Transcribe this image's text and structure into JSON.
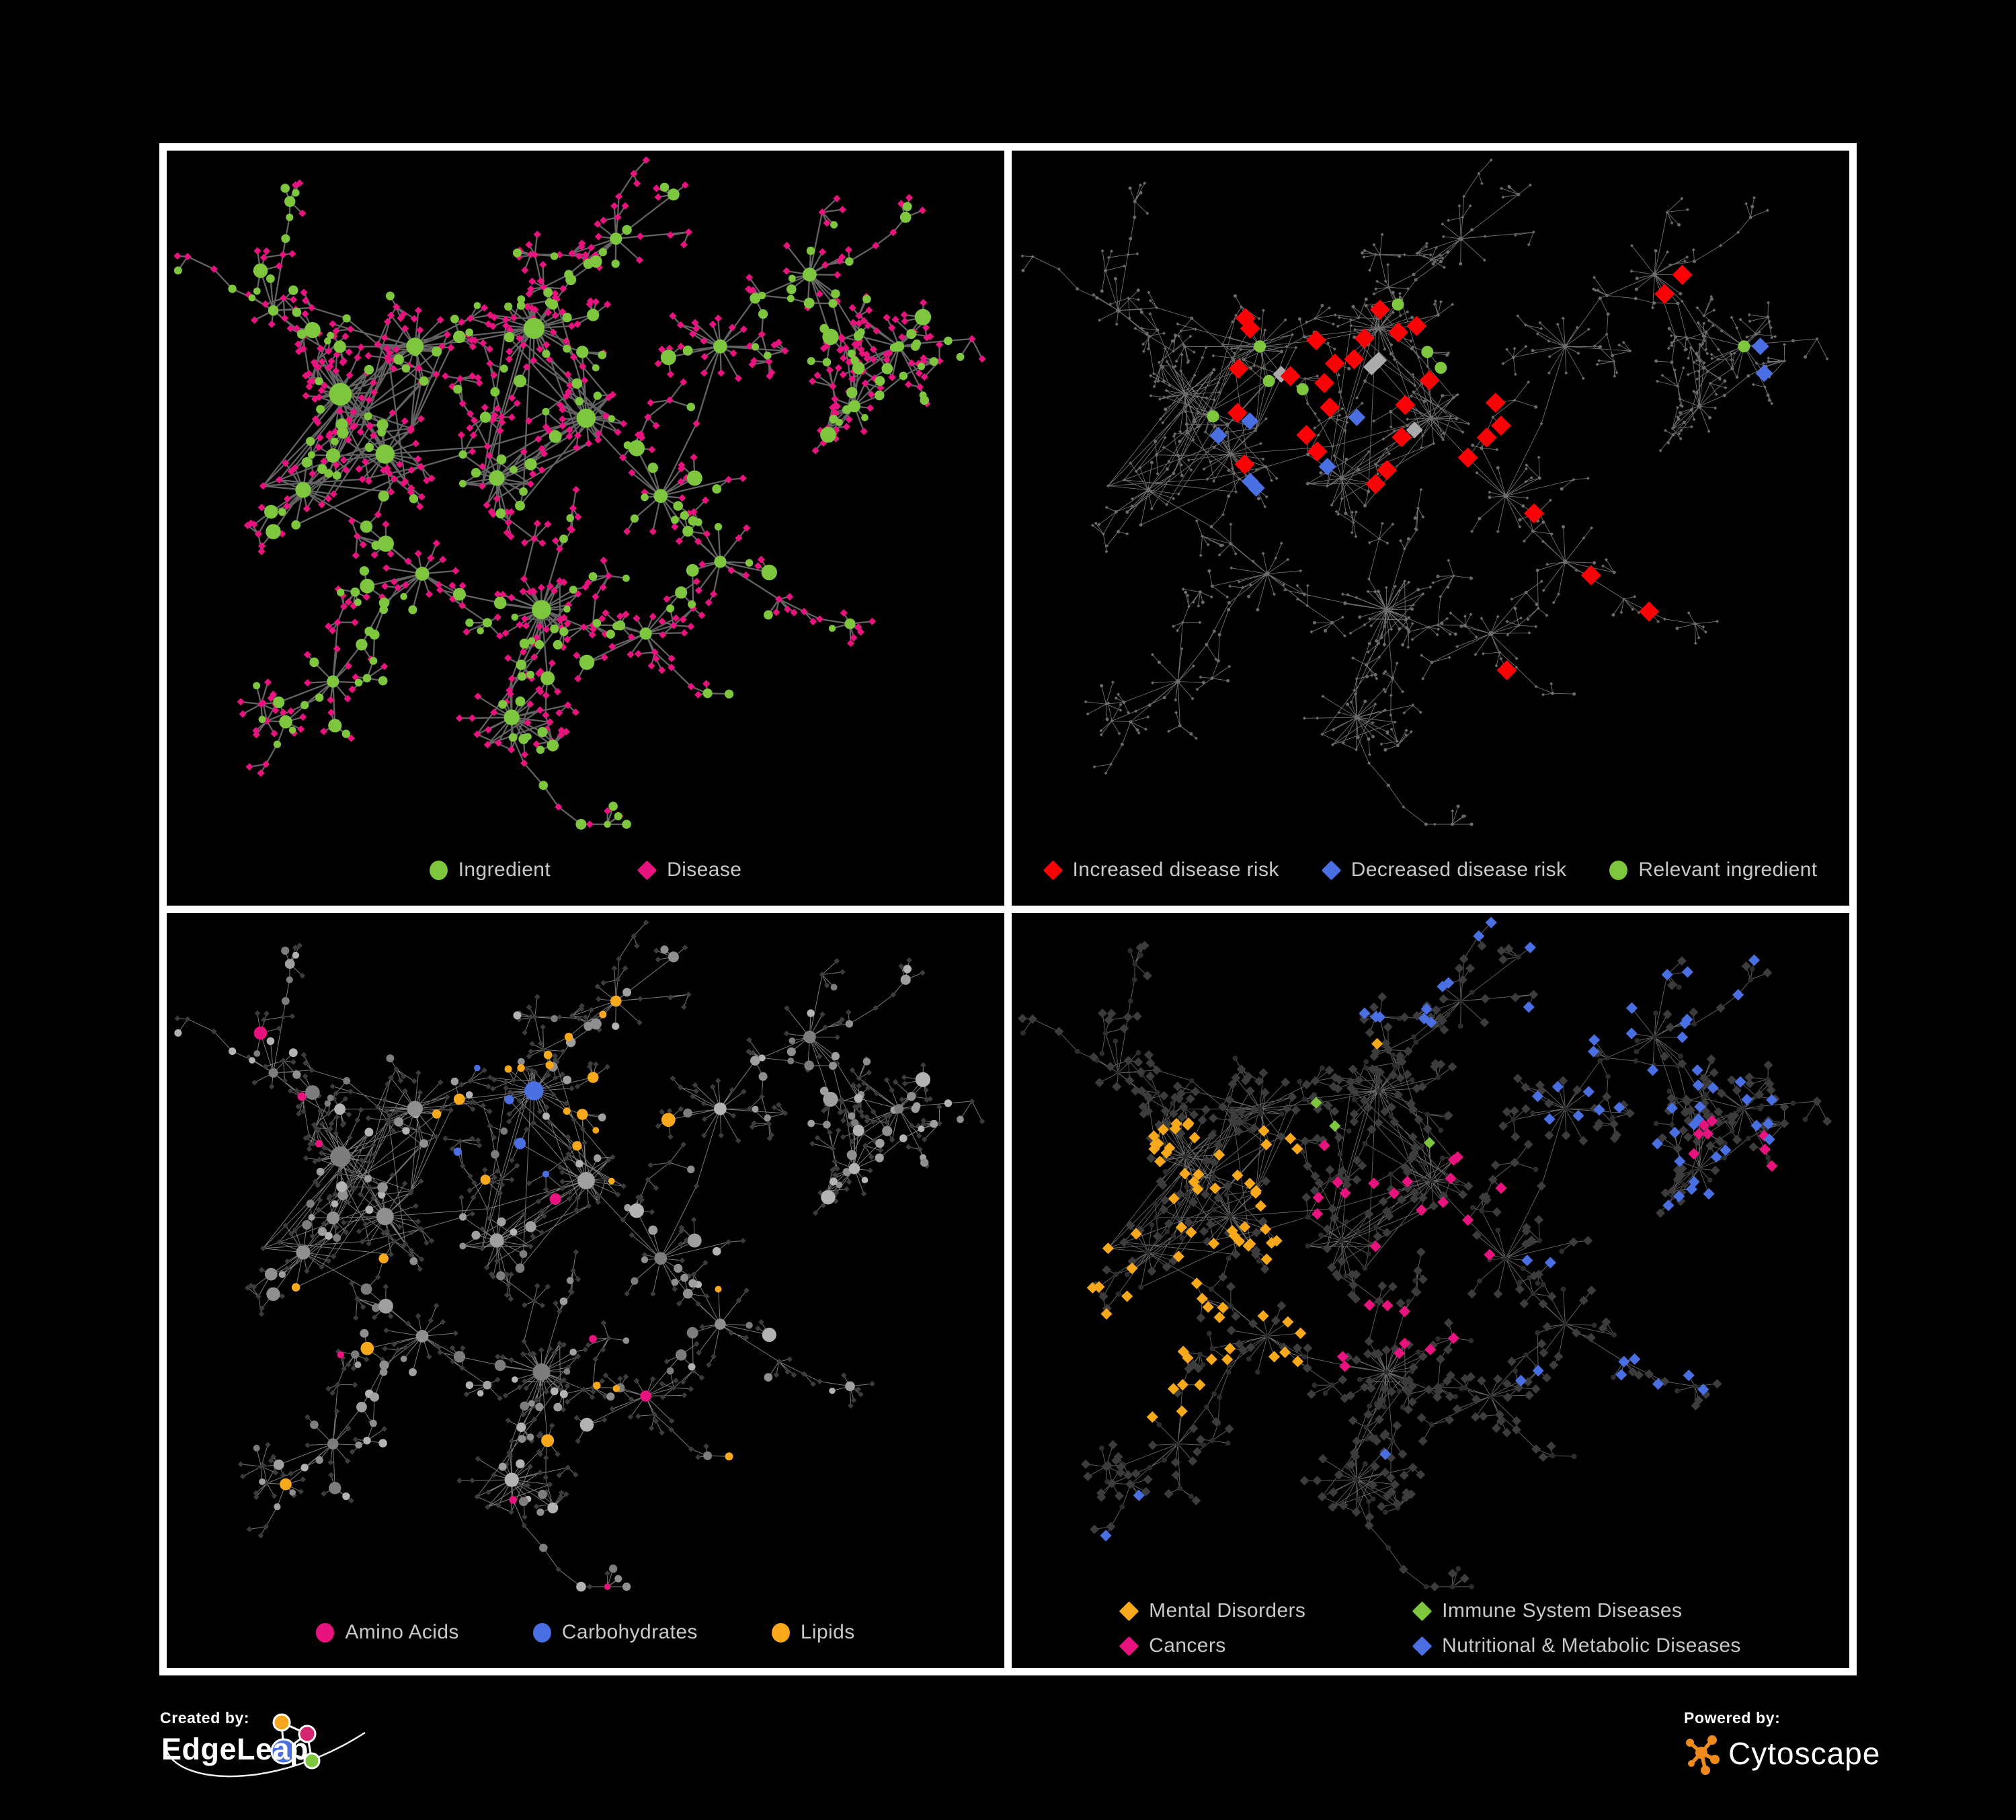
{
  "figure": {
    "palette": {
      "green": "#7DC63E",
      "magenta": "#E8137F",
      "red": "#FB0207",
      "blue": "#4A6FE3",
      "amber": "#F7A81B",
      "grayhl": "#ABABAB",
      "legendText": "#C8C8C8",
      "panelBorder": "#FFFFFF",
      "background": "#000000",
      "edgeDark": "#6A6A6A",
      "edgeLight": "#9A9A9A",
      "nodeGray": "#9B9B9B",
      "nodeDim": "#3C3C3C",
      "nodeDark": "#2D2D2D",
      "cytoscapeOrange": "#EF8A1D",
      "edgeleapBlue": "#4A6FDC",
      "edgeleapPink": "#D6256F",
      "edgeleapOrange": "#F2A71F",
      "edgeleapGreen": "#7DC63E"
    },
    "panels": [
      {
        "name": "ingredient-disease-network",
        "legend_layout": "row",
        "legend": [
          {
            "shape": "circle",
            "color": "green",
            "label": "Ingredient"
          },
          {
            "shape": "diamond",
            "color": "magenta",
            "label": "Disease"
          }
        ]
      },
      {
        "name": "disease-risk-network",
        "legend_layout": "row",
        "legend": [
          {
            "shape": "diamond",
            "color": "red",
            "label": "Increased disease risk"
          },
          {
            "shape": "diamond",
            "color": "blue",
            "label": "Decreased disease risk"
          },
          {
            "shape": "circle",
            "color": "green",
            "label": "Relevant ingredient"
          }
        ]
      },
      {
        "name": "ingredient-class-network",
        "legend_layout": "row",
        "legend": [
          {
            "shape": "circle",
            "color": "magenta",
            "label": "Amino Acids"
          },
          {
            "shape": "circle",
            "color": "blue",
            "label": "Carbohydrates"
          },
          {
            "shape": "circle",
            "color": "amber",
            "label": "Lipids"
          }
        ]
      },
      {
        "name": "disease-class-network",
        "legend_layout": "grid",
        "legend": [
          {
            "shape": "diamond",
            "color": "amber",
            "label": "Mental Disorders"
          },
          {
            "shape": "diamond",
            "color": "green",
            "label": "Immune System Diseases"
          },
          {
            "shape": "diamond",
            "color": "magenta",
            "label": "Cancers"
          },
          {
            "shape": "diamond",
            "color": "blue",
            "label": "Nutritional & Metabolic Diseases"
          }
        ]
      }
    ],
    "credits": {
      "created_by_label": "Created by:",
      "created_by_name": "EdgeLeap",
      "powered_by_label": "Powered by:",
      "powered_by_name": "Cytoscape"
    }
  }
}
